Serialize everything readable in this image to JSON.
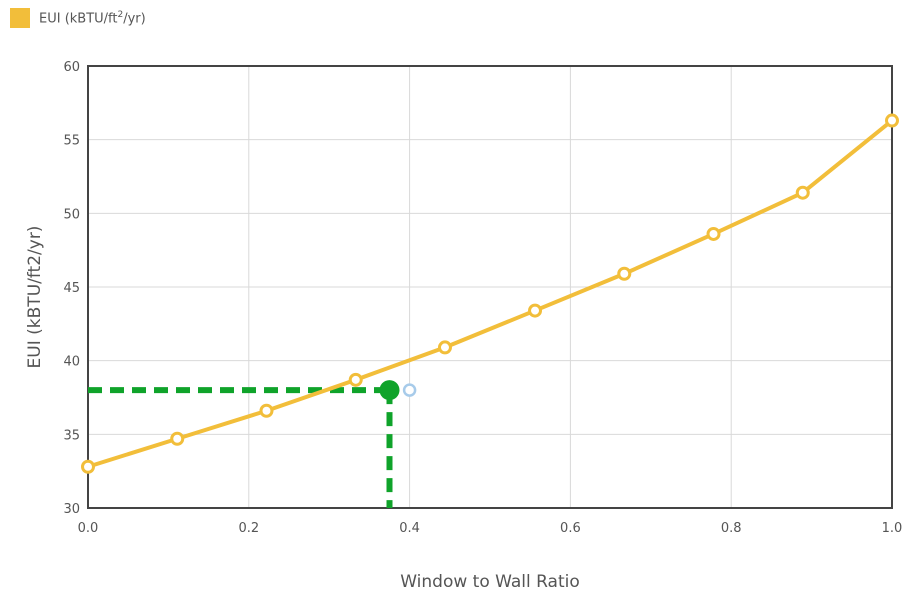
{
  "legend": {
    "label_main": "EUI (kBTU/ft",
    "label_sup": "2",
    "label_end": "/yr)",
    "swatch_color": "#F2BE3A"
  },
  "chart_data": {
    "type": "line",
    "xlabel": "Window to Wall Ratio",
    "ylabel": "EUI (kBTU/ft2/yr)",
    "xlim": [
      0,
      1
    ],
    "ylim": [
      30,
      60
    ],
    "x_ticks": [
      "0.0",
      "0.2",
      "0.4",
      "0.6",
      "0.8",
      "1.0"
    ],
    "y_ticks": [
      "30",
      "35",
      "40",
      "45",
      "50",
      "55",
      "60"
    ],
    "grid": true,
    "legend_position": "top-left",
    "series": [
      {
        "name": "EUI (kBTU/ft2/yr)",
        "color": "#F2BE3A",
        "x": [
          0.0,
          0.111,
          0.222,
          0.333,
          0.444,
          0.556,
          0.667,
          0.778,
          0.889,
          1.0
        ],
        "y": [
          32.8,
          34.7,
          36.6,
          38.7,
          40.9,
          43.4,
          45.9,
          48.6,
          51.4,
          56.3
        ]
      }
    ],
    "highlight": {
      "x": 0.375,
      "y": 38.0,
      "color": "#0FA32A",
      "guide_style": "dashed"
    },
    "hover_marker": {
      "x": 0.4,
      "y": 38.0,
      "color": "#A7CBEA"
    }
  }
}
